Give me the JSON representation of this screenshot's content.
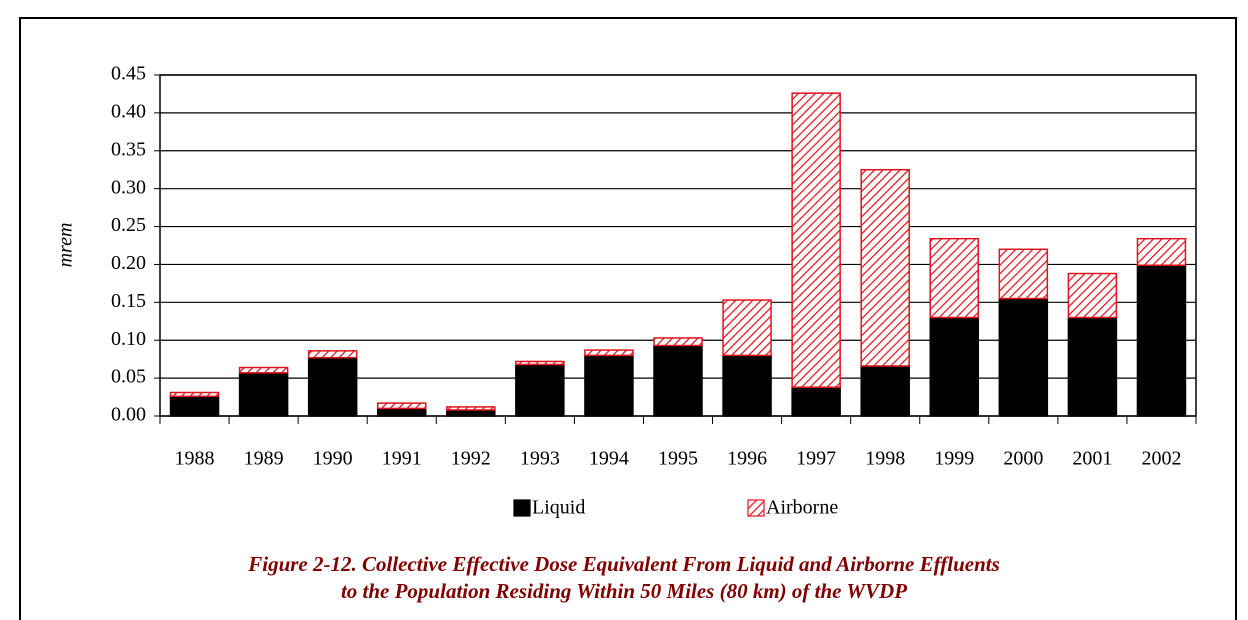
{
  "chart_data": {
    "type": "stacked_bar",
    "y_label": "mrem",
    "caption": [
      "Figure 2-12. Collective Effective Dose Equivalent From Liquid and Airborne Effluents",
      "to the Population Residing Within 50 Miles (80 km) of the WVDP"
    ],
    "categories": [
      "1988",
      "1989",
      "1990",
      "1991",
      "1992",
      "1993",
      "1994",
      "1995",
      "1996",
      "1997",
      "1998",
      "1999",
      "2000",
      "2001",
      "2002"
    ],
    "series": [
      {
        "name": "Liquid",
        "color": "#000000",
        "values": [
          0.026,
          0.057,
          0.077,
          0.01,
          0.008,
          0.068,
          0.08,
          0.093,
          0.08,
          0.038,
          0.066,
          0.13,
          0.155,
          0.13,
          0.199
        ]
      },
      {
        "name": "Airborne",
        "color": "#e0141e",
        "values": [
          0.005,
          0.007,
          0.009,
          0.007,
          0.004,
          0.004,
          0.007,
          0.01,
          0.073,
          0.388,
          0.259,
          0.104,
          0.065,
          0.058,
          0.035
        ]
      }
    ],
    "ylim": [
      0,
      0.45
    ],
    "yticks": [
      {
        "value": 0,
        "label": "0.00"
      },
      0.05,
      {
        "value": 0.1,
        "label": "0.10"
      },
      0.15,
      {
        "value": 0.2,
        "label": "0.20"
      },
      0.25,
      {
        "value": 0.3,
        "label": "0.30"
      },
      0.35,
      {
        "value": 0.4,
        "label": "0.40"
      },
      0.45
    ],
    "grid": true
  }
}
